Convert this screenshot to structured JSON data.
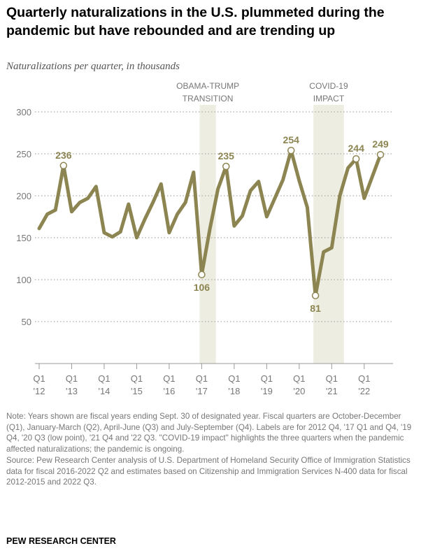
{
  "title": "Quarterly naturalizations in the U.S. plummeted during the pandemic but have rebounded and are trending up",
  "subtitle": "Naturalizations per quarter, in thousands",
  "chart_data": {
    "type": "line",
    "ylim": [
      0,
      300
    ],
    "yticks": [
      "50",
      "100",
      "150",
      "200",
      "250",
      "300"
    ],
    "grid": true,
    "color": "#8c8551",
    "shade_color": "#eeede2",
    "x": [
      "Q1 '12",
      "Q2 '12",
      "Q3 '12",
      "Q4 '12",
      "Q1 '13",
      "Q2 '13",
      "Q3 '13",
      "Q4 '13",
      "Q1 '14",
      "Q2 '14",
      "Q3 '14",
      "Q4 '14",
      "Q1 '15",
      "Q2 '15",
      "Q3 '15",
      "Q4 '15",
      "Q1 '16",
      "Q2 '16",
      "Q3 '16",
      "Q4 '16",
      "Q1 '17",
      "Q2 '17",
      "Q3 '17",
      "Q4 '17",
      "Q1 '18",
      "Q2 '18",
      "Q3 '18",
      "Q4 '18",
      "Q1 '19",
      "Q2 '19",
      "Q3 '19",
      "Q4 '19",
      "Q1 '20",
      "Q2 '20",
      "Q3 '20",
      "Q4 '20",
      "Q1 '21",
      "Q2 '21",
      "Q3 '21",
      "Q4 '21",
      "Q1 '22",
      "Q2 '22",
      "Q3 '22"
    ],
    "values": [
      161,
      178,
      183,
      236,
      181,
      192,
      197,
      211,
      156,
      151,
      157,
      190,
      150,
      172,
      192,
      214,
      156,
      178,
      192,
      228,
      106,
      160,
      208,
      235,
      164,
      176,
      206,
      217,
      175,
      197,
      219,
      254,
      218,
      186,
      81,
      133,
      138,
      200,
      233,
      244,
      197,
      223,
      249
    ],
    "labeled_points": [
      {
        "index": 3,
        "label": "236",
        "pos": "above"
      },
      {
        "index": 20,
        "label": "106",
        "pos": "below"
      },
      {
        "index": 23,
        "label": "235",
        "pos": "above"
      },
      {
        "index": 31,
        "label": "254",
        "pos": "above"
      },
      {
        "index": 34,
        "label": "81",
        "pos": "below"
      },
      {
        "index": 39,
        "label": "244",
        "pos": "above"
      },
      {
        "index": 42,
        "label": "249",
        "pos": "above"
      }
    ],
    "xtick_labels": [
      {
        "index": 0,
        "q": "Q1",
        "yr": "'12"
      },
      {
        "index": 4,
        "q": "Q1",
        "yr": "'13"
      },
      {
        "index": 8,
        "q": "Q1",
        "yr": "'14"
      },
      {
        "index": 12,
        "q": "Q1",
        "yr": "'15"
      },
      {
        "index": 16,
        "q": "Q1",
        "yr": "'16"
      },
      {
        "index": 20,
        "q": "Q1",
        "yr": "'17"
      },
      {
        "index": 24,
        "q": "Q1",
        "yr": "'18"
      },
      {
        "index": 28,
        "q": "Q1",
        "yr": "'19"
      },
      {
        "index": 32,
        "q": "Q1",
        "yr": "'20"
      },
      {
        "index": 36,
        "q": "Q1",
        "yr": "'21"
      },
      {
        "index": 40,
        "q": "Q1",
        "yr": "'22"
      }
    ],
    "shaded": [
      {
        "from": 19.75,
        "to": 21.75,
        "label1": "OBAMA-TRUMP",
        "label2": "TRANSITION"
      },
      {
        "from": 33.75,
        "to": 37.5,
        "label1": "COVID-19",
        "label2": "IMPACT"
      }
    ]
  },
  "note": "Note: Years shown are fiscal years ending Sept. 30 of designated year. Fiscal quarters are October-December (Q1), January-March (Q2), April-June (Q3) and July-September (Q4). Labels are for 2012 Q4, '17 Q1 and Q4, '19 Q4, '20 Q3 (low point), '21 Q4 and '22 Q3. \"COVID-19 impact\" highlights the three quarters when the pandemic affected naturalizations; the pandemic is ongoing.",
  "source": "Source: Pew Research Center analysis of U.S. Department of Homeland Security Office of Immigration Statistics data for fiscal 2016-2022 Q2 and estimates based on Citizenship and Immigration Services N-400 data for fiscal 2012-2015 and 2022 Q3.",
  "brand": "PEW RESEARCH CENTER"
}
